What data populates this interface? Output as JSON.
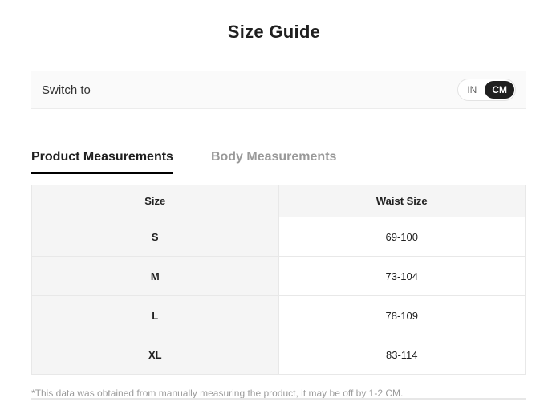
{
  "page": {
    "title": "Size Guide"
  },
  "unit_switcher": {
    "label": "Switch to",
    "options": [
      {
        "label": "IN",
        "selected": false
      },
      {
        "label": "CM",
        "selected": true
      }
    ]
  },
  "tabs": [
    {
      "label": "Product Measurements",
      "active": true
    },
    {
      "label": "Body Measurements",
      "active": false
    }
  ],
  "table": {
    "headers": [
      "Size",
      "Waist Size"
    ],
    "rows": [
      {
        "size": "S",
        "waist": "69-100"
      },
      {
        "size": "M",
        "waist": "73-104"
      },
      {
        "size": "L",
        "waist": "78-109"
      },
      {
        "size": "XL",
        "waist": "83-114"
      }
    ]
  },
  "footnote": "*This data was obtained from manually measuring the product, it may be off by 1-2 CM.",
  "colors": {
    "accent_dark": "#1f1f1f",
    "muted_text": "#999999",
    "shaded_cell_bg": "#f5f5f5",
    "table_border": "#e8e8e8"
  }
}
